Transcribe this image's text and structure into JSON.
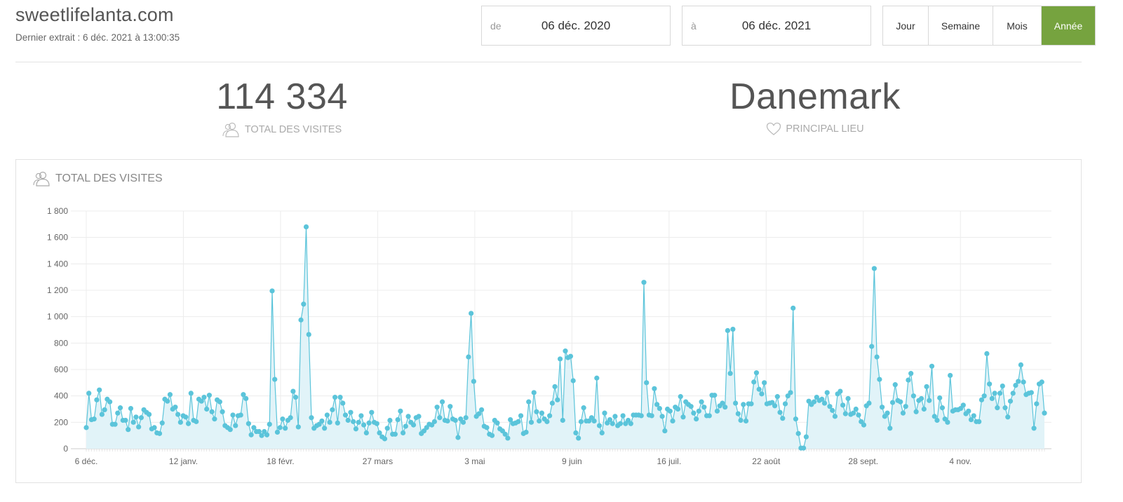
{
  "header": {
    "site": "sweetlifelanta.com",
    "last_extract": "Dernier extrait : 6 déc. 2021 à 13:00:35"
  },
  "date_range": {
    "from_prefix": "de",
    "from_value": "06 déc. 2020",
    "to_prefix": "à",
    "to_value": "06 déc. 2021"
  },
  "period_buttons": [
    {
      "label": "Jour",
      "active": false
    },
    {
      "label": "Semaine",
      "active": false
    },
    {
      "label": "Mois",
      "active": false
    },
    {
      "label": "Année",
      "active": true
    }
  ],
  "kpis": {
    "total_visits_value": "114 334",
    "total_visits_label": "TOTAL DES VISITES",
    "top_place_value": "Danemark",
    "top_place_label": "PRINCIPAL LIEU"
  },
  "chart_panel": {
    "title": "TOTAL DES VISITES"
  },
  "colors": {
    "accent_active": "#76a33f",
    "series_line": "#5bc4da",
    "series_fill": "#e1f3f8"
  },
  "icons": [
    "users-icon",
    "heart-icon"
  ],
  "chart_data": {
    "type": "area",
    "title": "TOTAL DES VISITES",
    "xlabel": "",
    "ylabel": "",
    "ylim": [
      0,
      1800
    ],
    "yticks": [
      0,
      200,
      400,
      600,
      800,
      1000,
      1200,
      1400,
      1600,
      1800
    ],
    "ytick_labels": [
      "0",
      "200",
      "400",
      "600",
      "800",
      "1 000",
      "1 200",
      "1 400",
      "1 600",
      "1 800"
    ],
    "x_start": "2020-12-06",
    "x_end": "2021-12-06",
    "xtick_labels": [
      {
        "label": "6 déc.",
        "date": "2020-12-06"
      },
      {
        "label": "12 janv.",
        "date": "2021-01-12"
      },
      {
        "label": "18 févr.",
        "date": "2021-02-18"
      },
      {
        "label": "27 mars",
        "date": "2021-03-27"
      },
      {
        "label": "3 mai",
        "date": "2021-05-03"
      },
      {
        "label": "9 juin",
        "date": "2021-06-09"
      },
      {
        "label": "16 juil.",
        "date": "2021-07-16"
      },
      {
        "label": "22 août",
        "date": "2021-08-22"
      },
      {
        "label": "28 sept.",
        "date": "2021-09-28"
      },
      {
        "label": "4 nov.",
        "date": "2021-11-04"
      }
    ],
    "grid": true,
    "series": [
      {
        "values": [
          160,
          420,
          220,
          225,
          370,
          445,
          260,
          295,
          375,
          355,
          185,
          185,
          270,
          310,
          215,
          215,
          145,
          305,
          200,
          240,
          165,
          235,
          295,
          275,
          260,
          150,
          160,
          120,
          115,
          195,
          375,
          360,
          410,
          300,
          315,
          260,
          200,
          250,
          240,
          190,
          420,
          215,
          205,
          375,
          360,
          390,
          300,
          405,
          280,
          225,
          370,
          355,
          280,
          175,
          160,
          145,
          255,
          175,
          250,
          255,
          410,
          380,
          190,
          105,
          160,
          130,
          130,
          100,
          130,
          105,
          185,
          1195,
          525,
          125,
          160,
          225,
          155,
          215,
          235,
          435,
          390,
          165,
          975,
          1095,
          1680,
          865,
          235,
          155,
          175,
          185,
          210,
          155,
          255,
          200,
          295,
          390,
          195,
          390,
          345,
          255,
          215,
          275,
          205,
          150,
          200,
          250,
          180,
          120,
          195,
          275,
          200,
          190,
          120,
          90,
          75,
          155,
          215,
          110,
          110,
          220,
          285,
          120,
          170,
          245,
          200,
          180,
          235,
          245,
          115,
          135,
          160,
          185,
          180,
          205,
          315,
          235,
          355,
          215,
          210,
          320,
          225,
          215,
          85,
          225,
          200,
          235,
          695,
          1025,
          510,
          245,
          265,
          295,
          170,
          160,
          110,
          100,
          215,
          195,
          150,
          135,
          110,
          80,
          220,
          190,
          195,
          205,
          250,
          115,
          125,
          355,
          200,
          425,
          280,
          210,
          270,
          225,
          205,
          250,
          345,
          470,
          370,
          680,
          215,
          740,
          690,
          700,
          515,
          120,
          80,
          205,
          310,
          210,
          210,
          235,
          210,
          535,
          175,
          120,
          270,
          195,
          220,
          190,
          245,
          175,
          190,
          250,
          190,
          215,
          190,
          255,
          255,
          255,
          250,
          1260,
          500,
          255,
          250,
          455,
          335,
          305,
          245,
          135,
          300,
          285,
          210,
          315,
          300,
          395,
          240,
          355,
          335,
          320,
          270,
          225,
          285,
          355,
          315,
          250,
          250,
          405,
          405,
          285,
          325,
          345,
          315,
          895,
          570,
          905,
          345,
          265,
          215,
          335,
          210,
          340,
          340,
          505,
          575,
          450,
          415,
          500,
          340,
          345,
          350,
          325,
          395,
          275,
          230,
          340,
          400,
          425,
          1065,
          225,
          115,
          5,
          5,
          90,
          360,
          335,
          355,
          390,
          365,
          375,
          345,
          425,
          320,
          290,
          245,
          415,
          435,
          330,
          265,
          380,
          260,
          270,
          300,
          255,
          205,
          180,
          325,
          345,
          775,
          1365,
          695,
          525,
          315,
          245,
          270,
          155,
          350,
          485,
          365,
          355,
          270,
          320,
          520,
          570,
          400,
          280,
          365,
          380,
          300,
          470,
          365,
          625,
          245,
          215,
          385,
          310,
          225,
          200,
          555,
          285,
          295,
          295,
          305,
          330,
          265,
          285,
          220,
          250,
          205,
          205,
          370,
          400,
          720,
          490,
          380,
          420,
          310,
          420,
          475,
          310,
          240,
          360,
          420,
          480,
          510,
          635,
          505,
          410,
          420,
          425,
          155,
          340,
          490,
          505,
          270
        ]
      }
    ]
  }
}
